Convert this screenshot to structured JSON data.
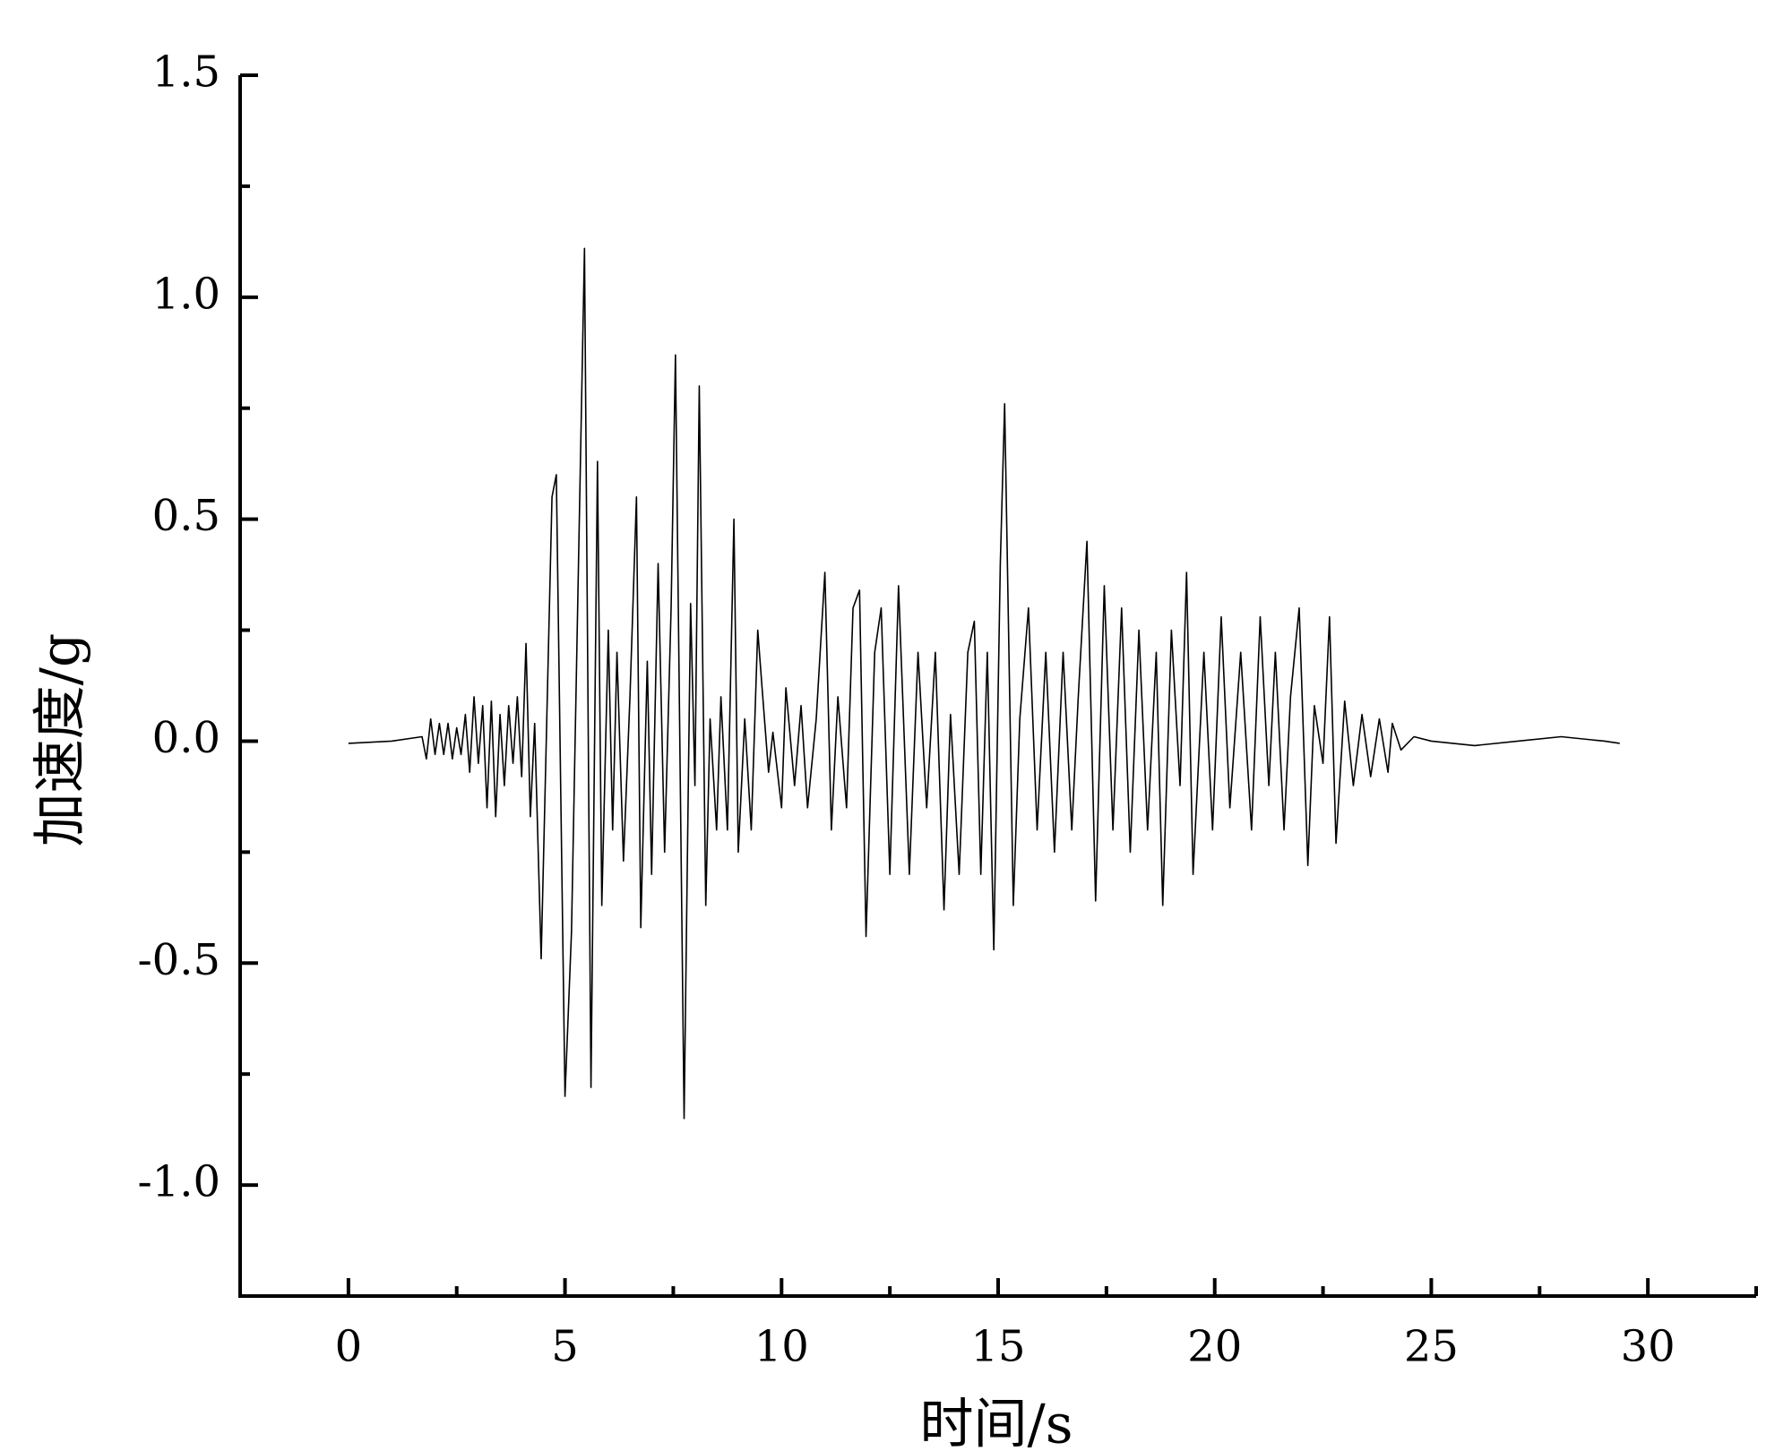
{
  "chart_data": {
    "type": "line",
    "xlabel": "时间/s",
    "ylabel": "加速度/g",
    "color": "#000000",
    "xlim": [
      -2.5,
      32.5
    ],
    "ylim": [
      -1.25,
      1.5
    ],
    "xticks": [
      0,
      5,
      10,
      15,
      20,
      25,
      30
    ],
    "xminorticks": [
      2.5,
      7.5,
      12.5,
      17.5,
      22.5,
      27.5,
      32.5
    ],
    "yticks": [
      {
        "value": -1,
        "label": "-1.0"
      },
      {
        "value": -0.5,
        "label": "-0.5"
      },
      {
        "value": 0,
        "label": "0.0"
      },
      {
        "value": 0.5,
        "label": "0.5"
      },
      {
        "value": 1,
        "label": "1.0"
      },
      1.5
    ],
    "yminorticks": [
      -0.75,
      -0.25,
      0.25,
      0.75,
      1.25
    ],
    "x": [
      0,
      1.0,
      1.7,
      1.8,
      1.9,
      2.0,
      2.1,
      2.2,
      2.3,
      2.4,
      2.5,
      2.6,
      2.7,
      2.8,
      2.9,
      3.0,
      3.1,
      3.2,
      3.3,
      3.4,
      3.5,
      3.6,
      3.7,
      3.8,
      3.9,
      4.0,
      4.1,
      4.2,
      4.3,
      4.45,
      4.7,
      4.8,
      5.0,
      5.15,
      5.45,
      5.6,
      5.75,
      5.85,
      6.0,
      6.1,
      6.2,
      6.35,
      6.5,
      6.65,
      6.75,
      6.9,
      7.0,
      7.15,
      7.3,
      7.45,
      7.55,
      7.75,
      7.9,
      8.0,
      8.1,
      8.25,
      8.35,
      8.5,
      8.6,
      8.75,
      8.9,
      9.0,
      9.15,
      9.3,
      9.45,
      9.55,
      9.7,
      9.8,
      10.0,
      10.1,
      10.3,
      10.45,
      10.6,
      10.8,
      11.0,
      11.15,
      11.3,
      11.5,
      11.65,
      11.8,
      11.95,
      12.15,
      12.3,
      12.5,
      12.7,
      12.95,
      13.15,
      13.35,
      13.55,
      13.75,
      13.9,
      14.1,
      14.3,
      14.45,
      14.6,
      14.75,
      14.9,
      15.05,
      15.15,
      15.35,
      15.5,
      15.7,
      15.9,
      16.1,
      16.3,
      16.5,
      16.7,
      16.85,
      17.05,
      17.25,
      17.45,
      17.65,
      17.85,
      18.05,
      18.25,
      18.45,
      18.65,
      18.8,
      19.0,
      19.2,
      19.35,
      19.5,
      19.75,
      19.95,
      20.15,
      20.35,
      20.6,
      20.85,
      21.05,
      21.25,
      21.4,
      21.6,
      21.75,
      21.95,
      22.15,
      22.3,
      22.5,
      22.65,
      22.8,
      23.0,
      23.2,
      23.4,
      23.6,
      23.8,
      24.0,
      24.1,
      24.3,
      24.6,
      25.0,
      26.0,
      27.0,
      28.0,
      29.0,
      29.35
    ],
    "values": [
      -0.005,
      0.0,
      0.01,
      -0.04,
      0.05,
      -0.03,
      0.04,
      -0.03,
      0.04,
      -0.04,
      0.03,
      -0.03,
      0.06,
      -0.07,
      0.1,
      -0.05,
      0.08,
      -0.15,
      0.09,
      -0.17,
      0.06,
      -0.1,
      0.08,
      -0.05,
      0.1,
      -0.08,
      0.22,
      -0.17,
      0.04,
      -0.49,
      0.55,
      0.6,
      -0.8,
      -0.43,
      1.11,
      -0.78,
      0.63,
      -0.37,
      0.25,
      -0.2,
      0.2,
      -0.27,
      0.1,
      0.55,
      -0.42,
      0.18,
      -0.3,
      0.4,
      -0.25,
      0.3,
      0.87,
      -0.85,
      0.31,
      -0.1,
      0.8,
      -0.37,
      0.05,
      -0.2,
      0.1,
      -0.2,
      0.5,
      -0.25,
      0.05,
      -0.2,
      0.25,
      0.12,
      -0.07,
      0.02,
      -0.15,
      0.12,
      -0.1,
      0.08,
      -0.15,
      0.05,
      0.38,
      -0.2,
      0.1,
      -0.15,
      0.3,
      0.34,
      -0.44,
      0.2,
      0.3,
      -0.3,
      0.35,
      -0.3,
      0.2,
      -0.15,
      0.2,
      -0.38,
      0.06,
      -0.3,
      0.2,
      0.27,
      -0.3,
      0.2,
      -0.47,
      0.4,
      0.76,
      -0.37,
      0.05,
      0.3,
      -0.2,
      0.2,
      -0.25,
      0.2,
      -0.2,
      0.1,
      0.45,
      -0.36,
      0.35,
      -0.2,
      0.3,
      -0.25,
      0.25,
      -0.2,
      0.2,
      -0.37,
      0.25,
      -0.1,
      0.38,
      -0.3,
      0.2,
      -0.2,
      0.28,
      -0.15,
      0.2,
      -0.2,
      0.28,
      -0.1,
      0.2,
      -0.2,
      0.1,
      0.3,
      -0.28,
      0.08,
      -0.05,
      0.28,
      -0.23,
      0.09,
      -0.1,
      0.06,
      -0.08,
      0.05,
      -0.07,
      0.04,
      -0.02,
      0.01,
      0.0,
      -0.01,
      0.0,
      0.01,
      0.0,
      -0.005
    ]
  }
}
